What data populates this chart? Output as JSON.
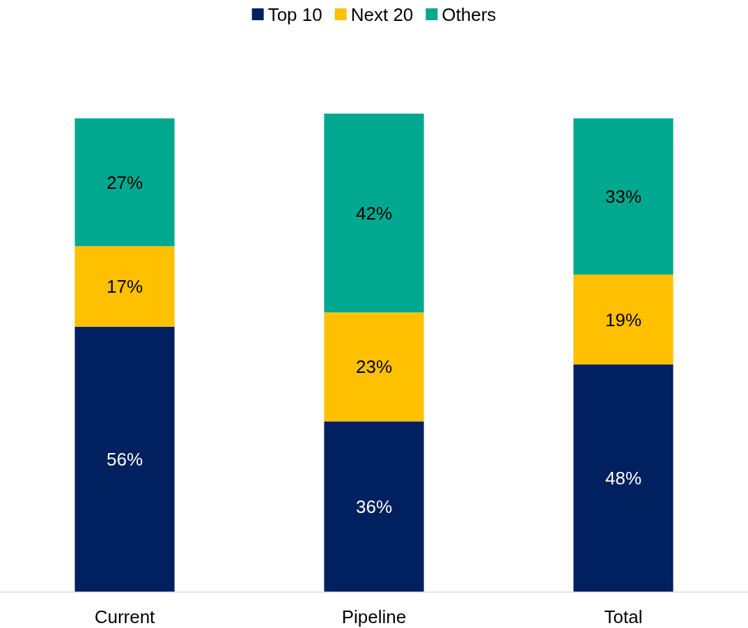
{
  "chart_data": {
    "type": "bar",
    "stacked": true,
    "categories": [
      "Current",
      "Pipeline",
      "Total"
    ],
    "series": [
      {
        "name": "Top 10",
        "color": "#002060",
        "values": [
          56,
          36,
          48
        ],
        "value_labels": [
          "56%",
          "36%",
          "48%"
        ]
      },
      {
        "name": "Next 20",
        "color": "#ffc000",
        "values": [
          17,
          23,
          19
        ],
        "value_labels": [
          "17%",
          "23%",
          "19%"
        ]
      },
      {
        "name": "Others",
        "color": "#00a88f",
        "values": [
          27,
          42,
          33
        ],
        "value_labels": [
          "27%",
          "42%",
          "33%"
        ]
      }
    ],
    "legend": "top",
    "tick_labels": "x"
  }
}
